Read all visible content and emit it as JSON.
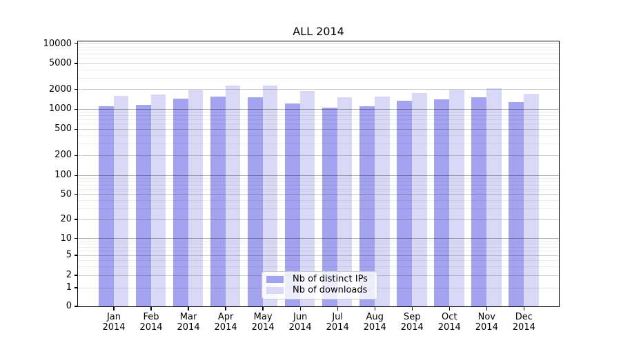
{
  "chart_data": {
    "type": "bar",
    "title": "ALL 2014",
    "categories": [
      "Jan",
      "Feb",
      "Mar",
      "Apr",
      "May",
      "Jun",
      "Jul",
      "Aug",
      "Sep",
      "Oct",
      "Nov",
      "Dec"
    ],
    "x_tick_second_line": "2014",
    "series": [
      {
        "name": "Nb of distinct IPs",
        "color": "#a3a3f0",
        "values": [
          1100,
          1150,
          1440,
          1550,
          1520,
          1200,
          1060,
          1090,
          1350,
          1420,
          1520,
          1270
        ]
      },
      {
        "name": "Nb of downloads",
        "color": "#d9d9f7",
        "values": [
          1580,
          1680,
          1950,
          2260,
          2270,
          1860,
          1500,
          1530,
          1750,
          1970,
          2080,
          1700
        ]
      }
    ],
    "y_axis": {
      "scale": "symlog",
      "tick_values": [
        0,
        1,
        2,
        5,
        10,
        20,
        50,
        100,
        200,
        500,
        1000,
        2000,
        5000,
        10000
      ],
      "tick_labels": [
        "0",
        "1",
        "2",
        "5",
        "10",
        "20",
        "50",
        "100",
        "200",
        "500",
        "1000",
        "2000",
        "5000",
        "10000"
      ],
      "range": [
        0,
        10800
      ]
    },
    "legend": {
      "position": "lower center"
    },
    "grid": {
      "major": true,
      "minor": true
    }
  }
}
